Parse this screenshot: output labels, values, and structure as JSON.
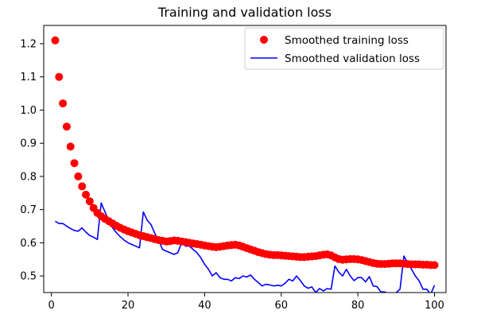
{
  "chart_data": {
    "type": "line",
    "title": "Training and validation loss",
    "xlabel": "",
    "ylabel": "",
    "xlim": [
      -2,
      103
    ],
    "ylim": [
      0.45,
      1.255
    ],
    "xticks": [
      0,
      20,
      40,
      60,
      80,
      100
    ],
    "yticks": [
      0.5,
      0.6,
      0.7,
      0.8,
      0.9,
      1.0,
      1.1,
      1.2
    ],
    "xtick_labels": [
      "0",
      "20",
      "40",
      "60",
      "80",
      "100"
    ],
    "ytick_labels": [
      "0.5",
      "0.6",
      "0.7",
      "0.8",
      "0.9",
      "1.0",
      "1.1",
      "1.2"
    ],
    "grid": false,
    "legend": "top-right",
    "series": [
      {
        "name": "Smoothed training loss",
        "style": "points",
        "color": "#ff0000",
        "x": [
          1,
          2,
          3,
          4,
          5,
          6,
          7,
          8,
          9,
          10,
          11,
          12,
          13,
          14,
          15,
          16,
          17,
          18,
          19,
          20,
          21,
          22,
          23,
          24,
          25,
          26,
          27,
          28,
          29,
          30,
          31,
          32,
          33,
          34,
          35,
          36,
          37,
          38,
          39,
          40,
          41,
          42,
          43,
          44,
          45,
          46,
          47,
          48,
          49,
          50,
          51,
          52,
          53,
          54,
          55,
          56,
          57,
          58,
          59,
          60,
          61,
          62,
          63,
          64,
          65,
          66,
          67,
          68,
          69,
          70,
          71,
          72,
          73,
          74,
          75,
          76,
          77,
          78,
          79,
          80,
          81,
          82,
          83,
          84,
          85,
          86,
          87,
          88,
          89,
          90,
          91,
          92,
          93,
          94,
          95,
          96,
          97,
          98,
          99,
          100
        ],
        "y": [
          1.21,
          1.1,
          1.02,
          0.95,
          0.89,
          0.84,
          0.8,
          0.77,
          0.745,
          0.725,
          0.705,
          0.69,
          0.68,
          0.672,
          0.665,
          0.658,
          0.651,
          0.645,
          0.64,
          0.635,
          0.631,
          0.627,
          0.623,
          0.62,
          0.617,
          0.614,
          0.611,
          0.608,
          0.606,
          0.604,
          0.605,
          0.607,
          0.606,
          0.604,
          0.602,
          0.6,
          0.598,
          0.596,
          0.594,
          0.592,
          0.59,
          0.588,
          0.587,
          0.588,
          0.59,
          0.592,
          0.593,
          0.594,
          0.592,
          0.588,
          0.584,
          0.58,
          0.576,
          0.572,
          0.569,
          0.566,
          0.564,
          0.563,
          0.563,
          0.562,
          0.561,
          0.56,
          0.559,
          0.558,
          0.557,
          0.557,
          0.558,
          0.559,
          0.56,
          0.562,
          0.564,
          0.565,
          0.562,
          0.556,
          0.551,
          0.549,
          0.55,
          0.551,
          0.551,
          0.55,
          0.548,
          0.545,
          0.542,
          0.539,
          0.537,
          0.536,
          0.536,
          0.537,
          0.538,
          0.538,
          0.538,
          0.537,
          0.536,
          0.535,
          0.535,
          0.535,
          0.534,
          0.534,
          0.533,
          0.533
        ]
      },
      {
        "name": "Smoothed validation loss",
        "style": "line",
        "color": "#0000ff",
        "x": [
          1,
          2,
          3,
          4,
          5,
          6,
          7,
          8,
          9,
          10,
          11,
          12,
          13,
          14,
          15,
          16,
          17,
          18,
          19,
          20,
          21,
          22,
          23,
          24,
          25,
          26,
          27,
          28,
          29,
          30,
          31,
          32,
          33,
          34,
          35,
          36,
          37,
          38,
          39,
          40,
          41,
          42,
          43,
          44,
          45,
          46,
          47,
          48,
          49,
          50,
          51,
          52,
          53,
          54,
          55,
          56,
          57,
          58,
          59,
          60,
          61,
          62,
          63,
          64,
          65,
          66,
          67,
          68,
          69,
          70,
          71,
          72,
          73,
          74,
          75,
          76,
          77,
          78,
          79,
          80,
          81,
          82,
          83,
          84,
          85,
          86,
          87,
          88,
          89,
          90,
          91,
          92,
          93,
          94,
          95,
          96,
          97,
          98,
          99,
          100
        ],
        "y": [
          0.665,
          0.658,
          0.658,
          0.65,
          0.643,
          0.637,
          0.635,
          0.645,
          0.632,
          0.622,
          0.617,
          0.61,
          0.72,
          0.693,
          0.665,
          0.645,
          0.63,
          0.618,
          0.608,
          0.6,
          0.595,
          0.59,
          0.585,
          0.693,
          0.668,
          0.655,
          0.628,
          0.608,
          0.58,
          0.575,
          0.57,
          0.565,
          0.57,
          0.6,
          0.59,
          0.59,
          0.58,
          0.57,
          0.555,
          0.535,
          0.52,
          0.5,
          0.51,
          0.495,
          0.49,
          0.49,
          0.485,
          0.495,
          0.492,
          0.5,
          0.497,
          0.503,
          0.49,
          0.48,
          0.47,
          0.475,
          0.473,
          0.47,
          0.472,
          0.47,
          0.478,
          0.49,
          0.485,
          0.5,
          0.486,
          0.47,
          0.463,
          0.467,
          0.45,
          0.462,
          0.455,
          0.462,
          0.46,
          0.53,
          0.512,
          0.5,
          0.52,
          0.5,
          0.486,
          0.495,
          0.495,
          0.482,
          0.498,
          0.47,
          0.468,
          0.452,
          0.452,
          0.446,
          0.444,
          0.45,
          0.46,
          0.56,
          0.54,
          0.52,
          0.5,
          0.485,
          0.46,
          0.46,
          0.445,
          0.472
        ]
      }
    ]
  }
}
